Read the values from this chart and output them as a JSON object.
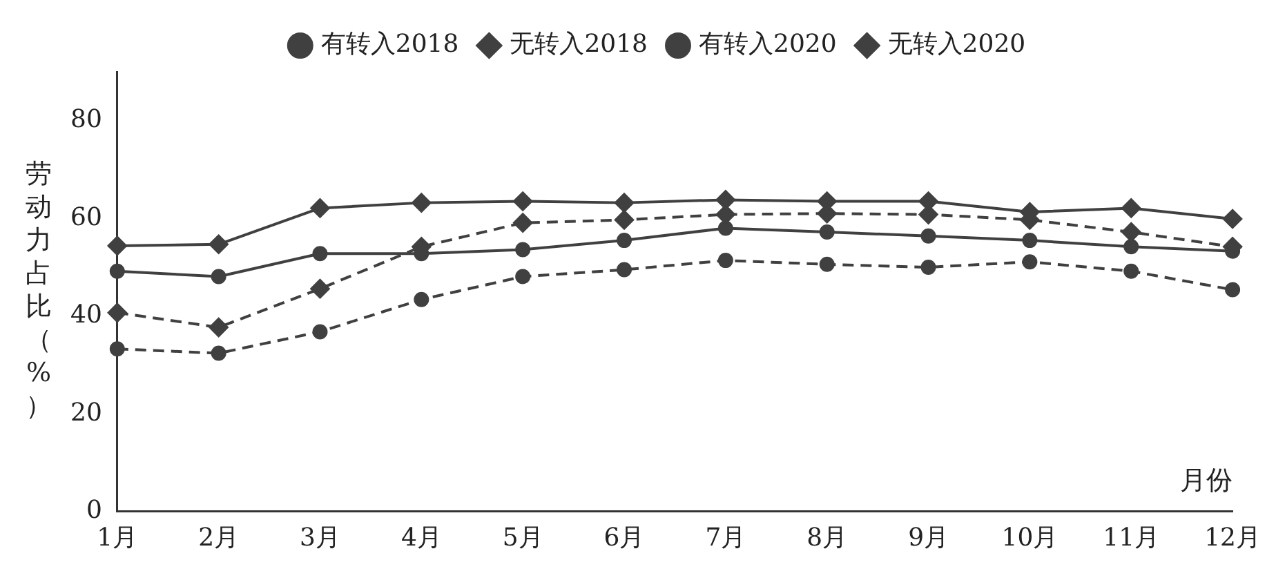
{
  "chart_data": {
    "type": "line",
    "xlabel": "月份",
    "ylabel": "劳动力占比（%）",
    "categories": [
      "1月",
      "2月",
      "3月",
      "4月",
      "5月",
      "6月",
      "7月",
      "8月",
      "9月",
      "10月",
      "11月",
      "12月"
    ],
    "ylim": [
      0,
      90
    ],
    "yticks": [
      0,
      20,
      40,
      60,
      80
    ],
    "grid": false,
    "legend": "top",
    "series": [
      {
        "name": "有转入2018",
        "color": "#404040",
        "marker": "circle",
        "line_style": "solid",
        "values": [
          49.2,
          48.1,
          52.8,
          52.8,
          53.6,
          55.5,
          58,
          57.2,
          56.4,
          55.5,
          54.2,
          53.3
        ]
      },
      {
        "name": "无转入2018",
        "color": "#404040",
        "marker": "diamond",
        "line_style": "solid",
        "values": [
          54.4,
          54.7,
          62.1,
          63.2,
          63.5,
          63.2,
          63.8,
          63.5,
          63.5,
          61.3,
          62.1,
          59.9
        ]
      },
      {
        "name": "有转入2020",
        "color": "#404040",
        "marker": "circle",
        "line_style": "dashed",
        "values": [
          33.3,
          32.4,
          36.8,
          43.4,
          48.1,
          49.5,
          51.4,
          50.6,
          50,
          51.1,
          49.2,
          45.4
        ]
      },
      {
        "name": "无转入2020",
        "color": "#404040",
        "marker": "diamond",
        "line_style": "dashed",
        "values": [
          40.7,
          37.7,
          45.6,
          54.2,
          59.1,
          59.7,
          60.8,
          61,
          60.8,
          59.7,
          57.2,
          54.2
        ]
      }
    ]
  }
}
